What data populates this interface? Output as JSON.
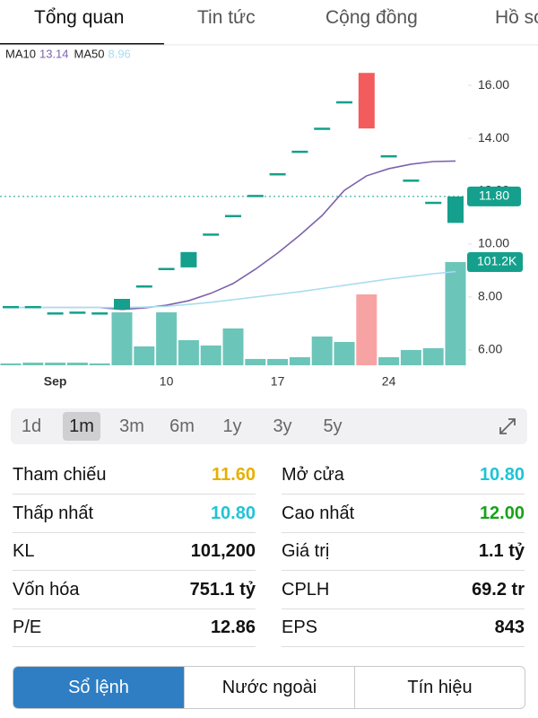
{
  "tabs": [
    "Tổng quan",
    "Tin tức",
    "Cộng đồng",
    "Hồ sơ"
  ],
  "chart_data": {
    "type": "candlestick",
    "categories": [
      null,
      null,
      "Sep",
      null,
      null,
      null,
      null,
      "10",
      null,
      null,
      null,
      null,
      "17",
      null,
      null,
      null,
      null,
      "24",
      null,
      null,
      null
    ],
    "open": [
      7.66,
      7.66,
      7.42,
      7.45,
      7.42,
      7.53,
      8.44,
      9.1,
      9.12,
      10.4,
      11.1,
      11.86,
      12.68,
      13.53,
      14.4,
      15.4,
      16.47,
      13.36,
      12.44,
      11.6,
      10.8
    ],
    "close": [
      7.66,
      7.66,
      7.42,
      7.45,
      7.42,
      7.93,
      8.44,
      9.1,
      9.7,
      10.4,
      11.1,
      11.86,
      12.68,
      13.53,
      14.4,
      15.4,
      14.37,
      13.36,
      12.44,
      11.6,
      11.8
    ],
    "volume": [
      1800,
      2600,
      2600,
      2600,
      1800,
      51900,
      18500,
      51900,
      24600,
      19400,
      36100,
      6200,
      6200,
      7900,
      28200,
      22900,
      69500,
      7900,
      15000,
      16700,
      101200
    ],
    "up_color": "#14a08c",
    "down_color": "#f25c5c",
    "volume_up_color": "#6cc5b9",
    "volume_down_color": "#f7a3a3",
    "ma": [
      {
        "name": "MA10",
        "value": 13.14,
        "color": "#7c63ad",
        "values": [
          7.6,
          7.6,
          7.6,
          7.6,
          7.6,
          7.53,
          7.59,
          7.69,
          7.86,
          8.14,
          8.51,
          9.05,
          9.66,
          10.34,
          11.08,
          12.03,
          12.58,
          12.85,
          13.02,
          13.12,
          13.14
        ]
      },
      {
        "name": "MA50",
        "value": 8.96,
        "color": "#a9dcf0",
        "values": [
          7.6,
          7.6,
          7.6,
          7.6,
          7.6,
          7.6,
          7.62,
          7.65,
          7.72,
          7.8,
          7.9,
          8.0,
          8.1,
          8.2,
          8.32,
          8.44,
          8.56,
          8.68,
          8.78,
          8.88,
          8.96
        ]
      }
    ],
    "ylim": [
      5.42,
      17.36
    ],
    "yticks": [
      {
        "value": 6,
        "label": "6.00"
      },
      {
        "value": 8,
        "label": "8.00"
      },
      {
        "value": 10,
        "label": "10.00"
      },
      {
        "value": 12,
        "label": "12.00"
      },
      {
        "value": 14,
        "label": "14.00"
      },
      {
        "value": 16,
        "label": "16.00"
      }
    ],
    "price_tag": {
      "value": 11.8,
      "label": "11.80"
    },
    "volume_tag": {
      "value": 101200,
      "label": "101.2K"
    }
  },
  "ranges": [
    "1d",
    "1m",
    "3m",
    "6m",
    "1y",
    "3y",
    "5y"
  ],
  "selected_range": 1,
  "stats": [
    {
      "label": "Tham chiếu",
      "value": "11.60",
      "color": "#e6b000"
    },
    {
      "label": "Mở cửa",
      "value": "10.80",
      "color": "#1fc4d6"
    },
    {
      "label": "Thấp nhất",
      "value": "10.80",
      "color": "#1fc4d6"
    },
    {
      "label": "Cao nhất",
      "value": "12.00",
      "color": "#19a219"
    },
    {
      "label": "KL",
      "value": "101,200",
      "color": "#111111"
    },
    {
      "label": "Giá trị",
      "value": "1.1 tỷ",
      "color": "#111111"
    },
    {
      "label": "Vốn hóa",
      "value": "751.1 tỷ",
      "color": "#111111"
    },
    {
      "label": "CPLH",
      "value": "69.2 tr",
      "color": "#111111"
    },
    {
      "label": "P/E",
      "value": "12.86",
      "color": "#111111"
    },
    {
      "label": "EPS",
      "value": "843",
      "color": "#111111"
    }
  ],
  "buttons": [
    "Sổ lệnh",
    "Nước ngoài",
    "Tín hiệu"
  ],
  "selected_button": 0
}
